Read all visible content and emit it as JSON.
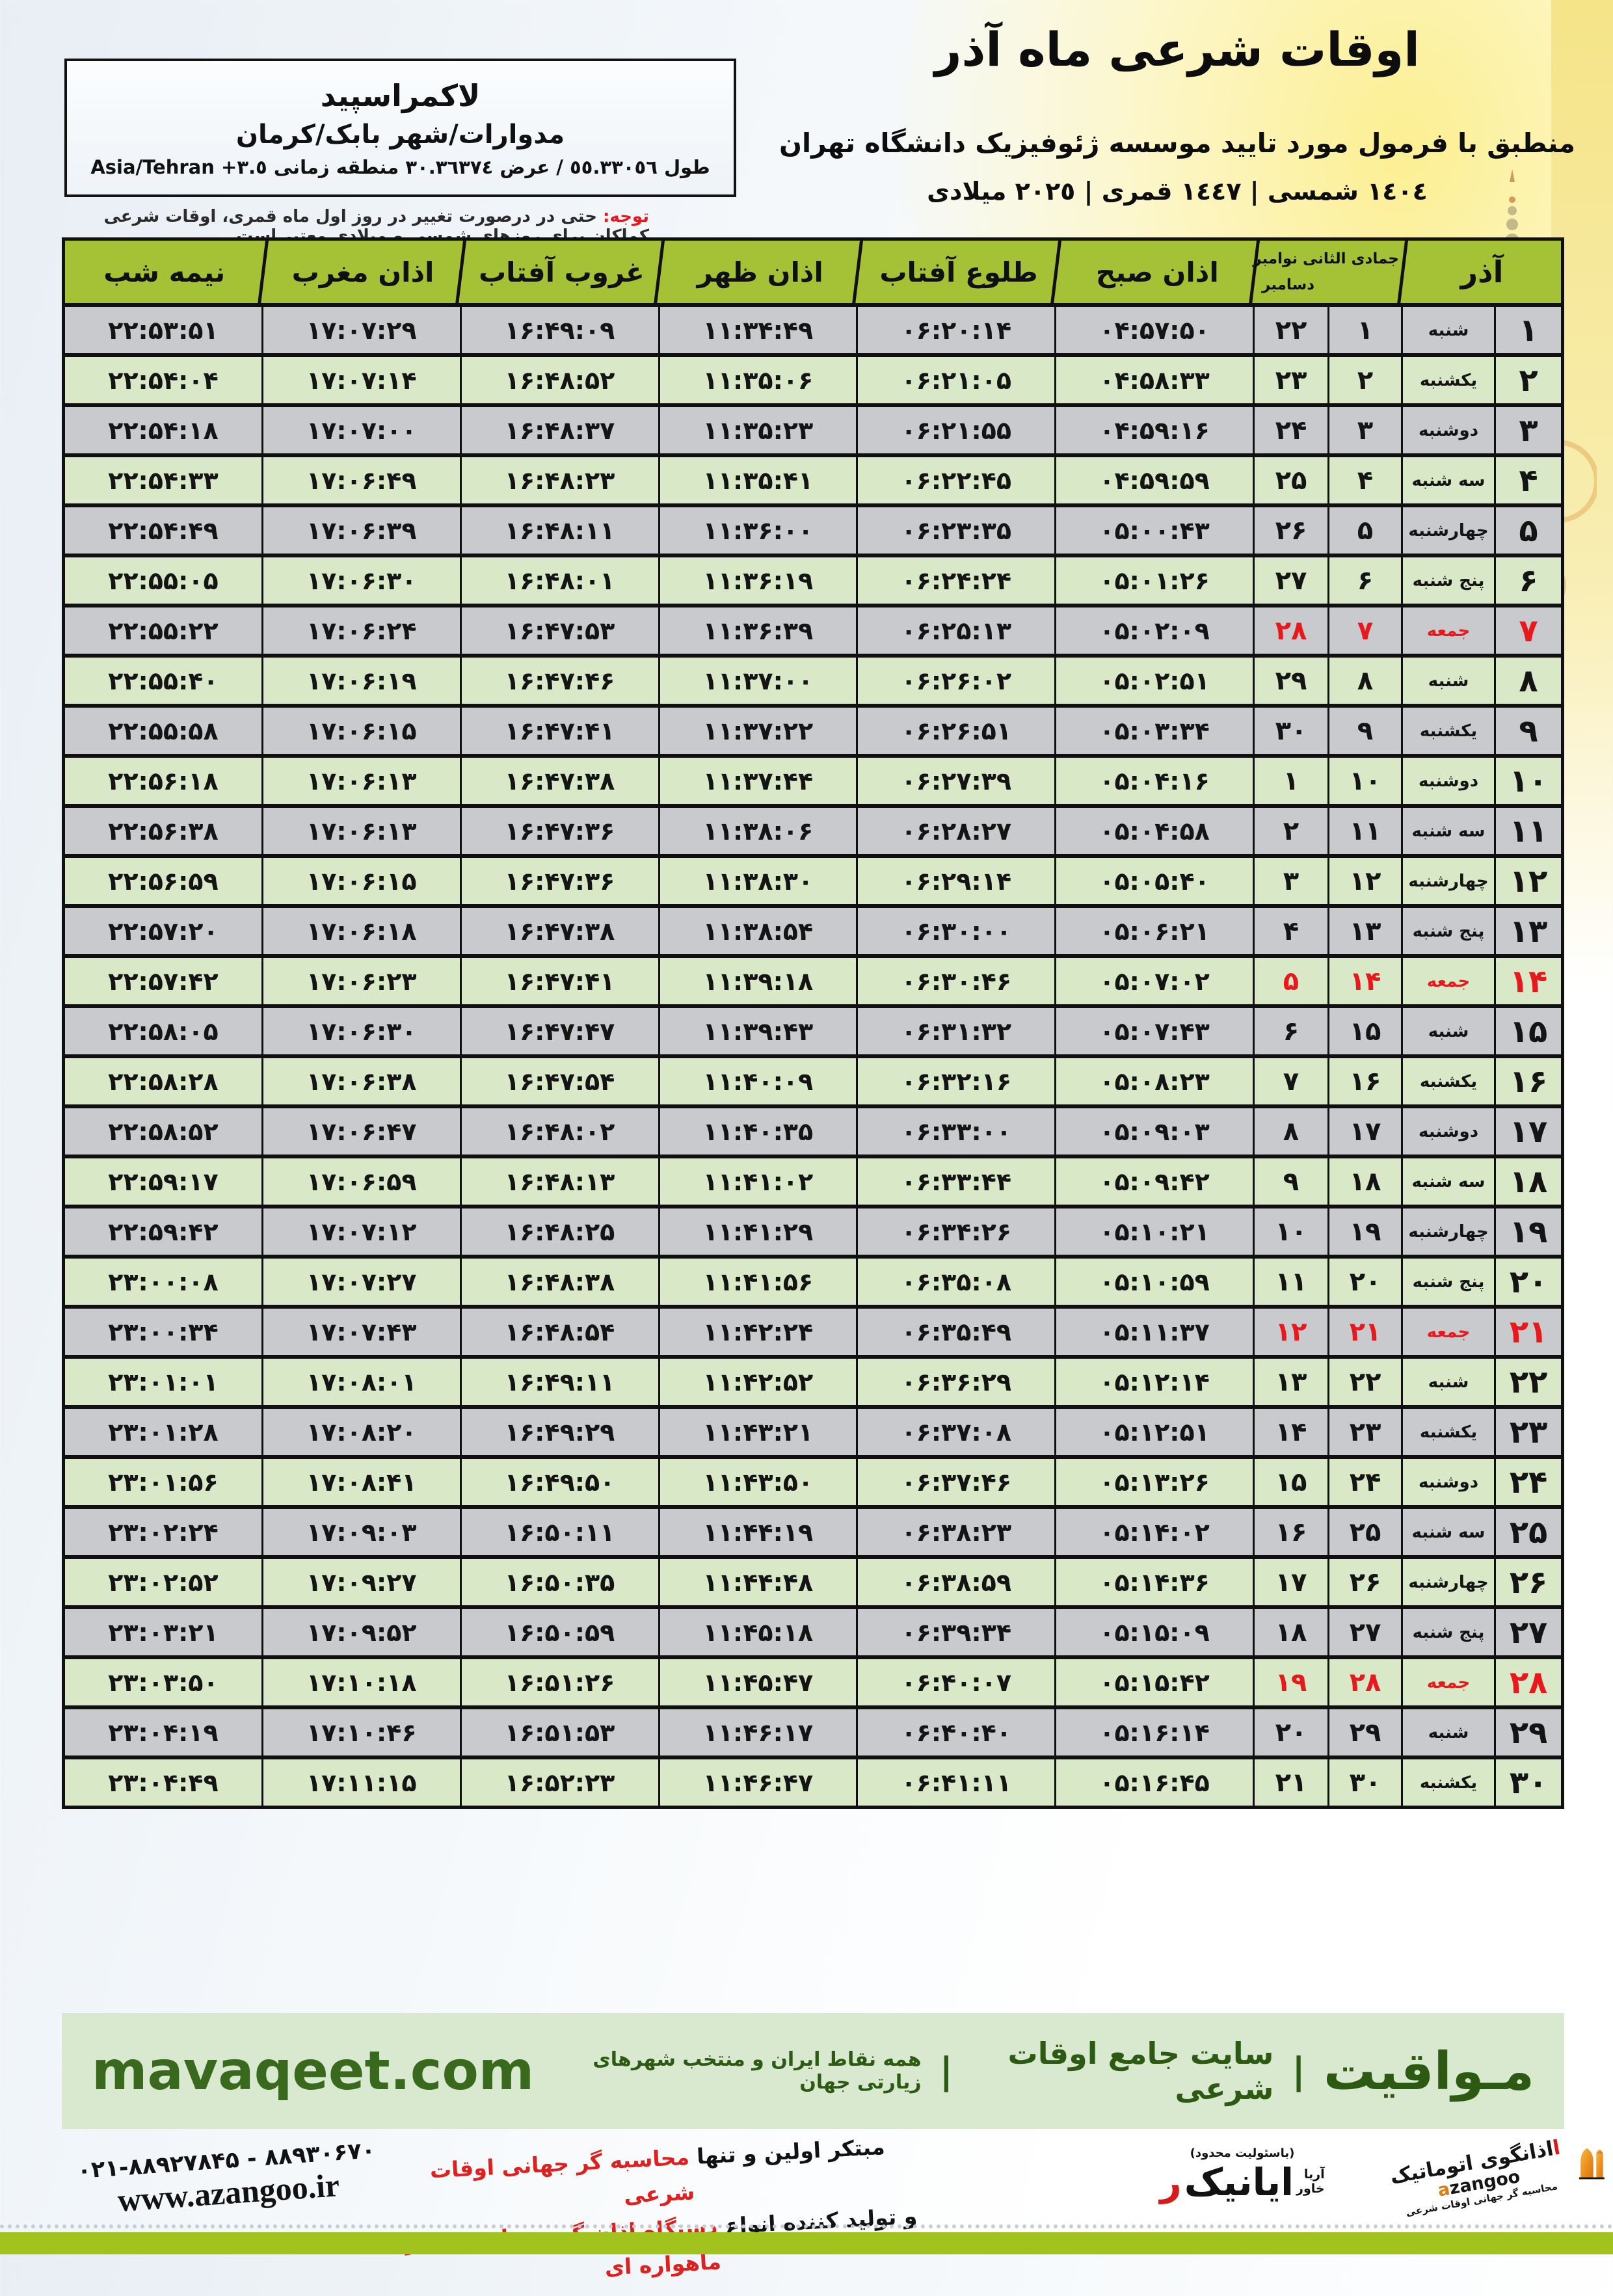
{
  "colors": {
    "accent_red": "#e8191d",
    "header_green": "#a5c136",
    "row_green": "#d9e8c6",
    "footer_green_bg": "#d8e9cf",
    "footer_dark_green": "#2d5a12",
    "bottom_lime": "#a2c31d"
  },
  "header": {
    "title": "اوقات شرعی ماه آذر",
    "subtitle": "منطبق با فرمول مورد تایید موسسه ژئوفیزیک دانشگاه تهران",
    "date_line": "١٤٠٤ شمسی | ١٤٤٧ قمری | ٢٠٢٥ میلادی",
    "note_label": "توجه:",
    "note_text": " حتی در درصورت تغییر در روز اول ماه قمری، اوقات شرعی کماکان برای روزهای شمسی و میلادی معتبر است."
  },
  "location": {
    "name": "لاکمراسپید",
    "region": "مدوارات/شهر بابک/کرمان",
    "coords_text": "طول ٥٥.٣٣٠٥٦ / عرض ٣٠.٣٦٣٧٤ منطقه زمانی",
    "timezone_offset": "+٣.٥",
    "timezone_name": "Asia/Tehran"
  },
  "table": {
    "month_label": "آذر",
    "lunar_greg_label_line1": "جمادی الثانی نوامبر",
    "lunar_greg_label_line2": "دسامبر",
    "time_headers": [
      "اذان صبح",
      "طلوع آفتاب",
      "اذان ظهر",
      "غروب آفتاب",
      "اذان مغرب",
      "نیمه شب"
    ],
    "rows": [
      {
        "azar": 1,
        "weekday": "شنبه",
        "lunar": 1,
        "greg": 22,
        "sobh": "04:57:50",
        "tolu": "06:20:14",
        "zohr": "11:34:49",
        "ghorub": "16:49:09",
        "maghreb": "17:07:29",
        "nimeshab": "22:53:51",
        "friday": false
      },
      {
        "azar": 2,
        "weekday": "یکشنبه",
        "lunar": 2,
        "greg": 23,
        "sobh": "04:58:33",
        "tolu": "06:21:05",
        "zohr": "11:35:06",
        "ghorub": "16:48:52",
        "maghreb": "17:07:14",
        "nimeshab": "22:54:04",
        "friday": false
      },
      {
        "azar": 3,
        "weekday": "دوشنبه",
        "lunar": 3,
        "greg": 24,
        "sobh": "04:59:16",
        "tolu": "06:21:55",
        "zohr": "11:35:23",
        "ghorub": "16:48:37",
        "maghreb": "17:07:00",
        "nimeshab": "22:54:18",
        "friday": false
      },
      {
        "azar": 4,
        "weekday": "سه شنبه",
        "lunar": 4,
        "greg": 25,
        "sobh": "04:59:59",
        "tolu": "06:22:45",
        "zohr": "11:35:41",
        "ghorub": "16:48:23",
        "maghreb": "17:06:49",
        "nimeshab": "22:54:33",
        "friday": false
      },
      {
        "azar": 5,
        "weekday": "چهارشنبه",
        "lunar": 5,
        "greg": 26,
        "sobh": "05:00:43",
        "tolu": "06:23:35",
        "zohr": "11:36:00",
        "ghorub": "16:48:11",
        "maghreb": "17:06:39",
        "nimeshab": "22:54:49",
        "friday": false
      },
      {
        "azar": 6,
        "weekday": "پنج شنبه",
        "lunar": 6,
        "greg": 27,
        "sobh": "05:01:26",
        "tolu": "06:24:24",
        "zohr": "11:36:19",
        "ghorub": "16:48:01",
        "maghreb": "17:06:30",
        "nimeshab": "22:55:05",
        "friday": false
      },
      {
        "azar": 7,
        "weekday": "جمعه",
        "lunar": 7,
        "greg": 28,
        "sobh": "05:02:09",
        "tolu": "06:25:13",
        "zohr": "11:36:39",
        "ghorub": "16:47:53",
        "maghreb": "17:06:24",
        "nimeshab": "22:55:22",
        "friday": true
      },
      {
        "azar": 8,
        "weekday": "شنبه",
        "lunar": 8,
        "greg": 29,
        "sobh": "05:02:51",
        "tolu": "06:26:02",
        "zohr": "11:37:00",
        "ghorub": "16:47:46",
        "maghreb": "17:06:19",
        "nimeshab": "22:55:40",
        "friday": false
      },
      {
        "azar": 9,
        "weekday": "یکشنبه",
        "lunar": 9,
        "greg": 30,
        "sobh": "05:03:34",
        "tolu": "06:26:51",
        "zohr": "11:37:22",
        "ghorub": "16:47:41",
        "maghreb": "17:06:15",
        "nimeshab": "22:55:58",
        "friday": false
      },
      {
        "azar": 10,
        "weekday": "دوشنبه",
        "lunar": 10,
        "greg": 1,
        "sobh": "05:04:16",
        "tolu": "06:27:39",
        "zohr": "11:37:44",
        "ghorub": "16:47:38",
        "maghreb": "17:06:13",
        "nimeshab": "22:56:18",
        "friday": false
      },
      {
        "azar": 11,
        "weekday": "سه شنبه",
        "lunar": 11,
        "greg": 2,
        "sobh": "05:04:58",
        "tolu": "06:28:27",
        "zohr": "11:38:06",
        "ghorub": "16:47:36",
        "maghreb": "17:06:13",
        "nimeshab": "22:56:38",
        "friday": false
      },
      {
        "azar": 12,
        "weekday": "چهارشنبه",
        "lunar": 12,
        "greg": 3,
        "sobh": "05:05:40",
        "tolu": "06:29:14",
        "zohr": "11:38:30",
        "ghorub": "16:47:36",
        "maghreb": "17:06:15",
        "nimeshab": "22:56:59",
        "friday": false
      },
      {
        "azar": 13,
        "weekday": "پنج شنبه",
        "lunar": 13,
        "greg": 4,
        "sobh": "05:06:21",
        "tolu": "06:30:00",
        "zohr": "11:38:54",
        "ghorub": "16:47:38",
        "maghreb": "17:06:18",
        "nimeshab": "22:57:20",
        "friday": false
      },
      {
        "azar": 14,
        "weekday": "جمعه",
        "lunar": 14,
        "greg": 5,
        "sobh": "05:07:02",
        "tolu": "06:30:46",
        "zohr": "11:39:18",
        "ghorub": "16:47:41",
        "maghreb": "17:06:23",
        "nimeshab": "22:57:42",
        "friday": true
      },
      {
        "azar": 15,
        "weekday": "شنبه",
        "lunar": 15,
        "greg": 6,
        "sobh": "05:07:43",
        "tolu": "06:31:32",
        "zohr": "11:39:43",
        "ghorub": "16:47:47",
        "maghreb": "17:06:30",
        "nimeshab": "22:58:05",
        "friday": false
      },
      {
        "azar": 16,
        "weekday": "یکشنبه",
        "lunar": 16,
        "greg": 7,
        "sobh": "05:08:23",
        "tolu": "06:32:16",
        "zohr": "11:40:09",
        "ghorub": "16:47:54",
        "maghreb": "17:06:38",
        "nimeshab": "22:58:28",
        "friday": false
      },
      {
        "azar": 17,
        "weekday": "دوشنبه",
        "lunar": 17,
        "greg": 8,
        "sobh": "05:09:03",
        "tolu": "06:33:00",
        "zohr": "11:40:35",
        "ghorub": "16:48:02",
        "maghreb": "17:06:47",
        "nimeshab": "22:58:52",
        "friday": false
      },
      {
        "azar": 18,
        "weekday": "سه شنبه",
        "lunar": 18,
        "greg": 9,
        "sobh": "05:09:42",
        "tolu": "06:33:44",
        "zohr": "11:41:02",
        "ghorub": "16:48:13",
        "maghreb": "17:06:59",
        "nimeshab": "22:59:17",
        "friday": false
      },
      {
        "azar": 19,
        "weekday": "چهارشنبه",
        "lunar": 19,
        "greg": 10,
        "sobh": "05:10:21",
        "tolu": "06:34:26",
        "zohr": "11:41:29",
        "ghorub": "16:48:25",
        "maghreb": "17:07:12",
        "nimeshab": "22:59:42",
        "friday": false
      },
      {
        "azar": 20,
        "weekday": "پنج شنبه",
        "lunar": 20,
        "greg": 11,
        "sobh": "05:10:59",
        "tolu": "06:35:08",
        "zohr": "11:41:56",
        "ghorub": "16:48:38",
        "maghreb": "17:07:27",
        "nimeshab": "23:00:08",
        "friday": false
      },
      {
        "azar": 21,
        "weekday": "جمعه",
        "lunar": 21,
        "greg": 12,
        "sobh": "05:11:37",
        "tolu": "06:35:49",
        "zohr": "11:42:24",
        "ghorub": "16:48:54",
        "maghreb": "17:07:43",
        "nimeshab": "23:00:34",
        "friday": true
      },
      {
        "azar": 22,
        "weekday": "شنبه",
        "lunar": 22,
        "greg": 13,
        "sobh": "05:12:14",
        "tolu": "06:36:29",
        "zohr": "11:42:52",
        "ghorub": "16:49:11",
        "maghreb": "17:08:01",
        "nimeshab": "23:01:01",
        "friday": false
      },
      {
        "azar": 23,
        "weekday": "یکشنبه",
        "lunar": 23,
        "greg": 14,
        "sobh": "05:12:51",
        "tolu": "06:37:08",
        "zohr": "11:43:21",
        "ghorub": "16:49:29",
        "maghreb": "17:08:20",
        "nimeshab": "23:01:28",
        "friday": false
      },
      {
        "azar": 24,
        "weekday": "دوشنبه",
        "lunar": 24,
        "greg": 15,
        "sobh": "05:13:26",
        "tolu": "06:37:46",
        "zohr": "11:43:50",
        "ghorub": "16:49:50",
        "maghreb": "17:08:41",
        "nimeshab": "23:01:56",
        "friday": false
      },
      {
        "azar": 25,
        "weekday": "سه شنبه",
        "lunar": 25,
        "greg": 16,
        "sobh": "05:14:02",
        "tolu": "06:38:23",
        "zohr": "11:44:19",
        "ghorub": "16:50:11",
        "maghreb": "17:09:03",
        "nimeshab": "23:02:24",
        "friday": false
      },
      {
        "azar": 26,
        "weekday": "چهارشنبه",
        "lunar": 26,
        "greg": 17,
        "sobh": "05:14:36",
        "tolu": "06:38:59",
        "zohr": "11:44:48",
        "ghorub": "16:50:35",
        "maghreb": "17:09:27",
        "nimeshab": "23:02:52",
        "friday": false
      },
      {
        "azar": 27,
        "weekday": "پنج شنبه",
        "lunar": 27,
        "greg": 18,
        "sobh": "05:15:09",
        "tolu": "06:39:34",
        "zohr": "11:45:18",
        "ghorub": "16:50:59",
        "maghreb": "17:09:52",
        "nimeshab": "23:03:21",
        "friday": false
      },
      {
        "azar": 28,
        "weekday": "جمعه",
        "lunar": 28,
        "greg": 19,
        "sobh": "05:15:42",
        "tolu": "06:40:07",
        "zohr": "11:45:47",
        "ghorub": "16:51:26",
        "maghreb": "17:10:18",
        "nimeshab": "23:03:50",
        "friday": true
      },
      {
        "azar": 29,
        "weekday": "شنبه",
        "lunar": 29,
        "greg": 20,
        "sobh": "05:16:14",
        "tolu": "06:40:40",
        "zohr": "11:46:17",
        "ghorub": "16:51:53",
        "maghreb": "17:10:46",
        "nimeshab": "23:04:19",
        "friday": false
      },
      {
        "azar": 30,
        "weekday": "یکشنبه",
        "lunar": 30,
        "greg": 21,
        "sobh": "05:16:45",
        "tolu": "06:41:11",
        "zohr": "11:46:47",
        "ghorub": "16:52:23",
        "maghreb": "17:11:15",
        "nimeshab": "23:04:49",
        "friday": false
      }
    ]
  },
  "mavaqeet": {
    "brand": "مـواقیت",
    "separator": "|",
    "site_type": "سایت جامع اوقات شرعی",
    "description": "همه نقاط ایران و منتخب شهرهای زیارتی جهان",
    "url": "mavaqeet.com"
  },
  "footer": {
    "phones": "۰۲۱-۸۸۹۲۷۸۴۵ - ۸۸۹۳۰۶۷۰",
    "website": "www.azangoo.ir",
    "slogan1_black": "مبتکر اولین و تنها",
    "slogan1_red": "محاسبه گر جهانی اوقات شرعی",
    "slogan2_black": "و تولید کننده انواع",
    "slogan2_red": "دستگاه اذان گوی تمام خودکار ماهواره ای",
    "rayanik_sub": "(باسئولیت محدود)",
    "rayanik_first": "ر",
    "rayanik_rest": "ایانیک",
    "rayanik_side1": "آریا",
    "rayanik_side2": "خاور",
    "azangoo_main": "اذانگوی اتوماتیک",
    "azangoo_latin_a": "a",
    "azangoo_latin_rest": "zangoo",
    "azangoo_sub": "محاسبه گر جهانی اوقات شرعی"
  }
}
